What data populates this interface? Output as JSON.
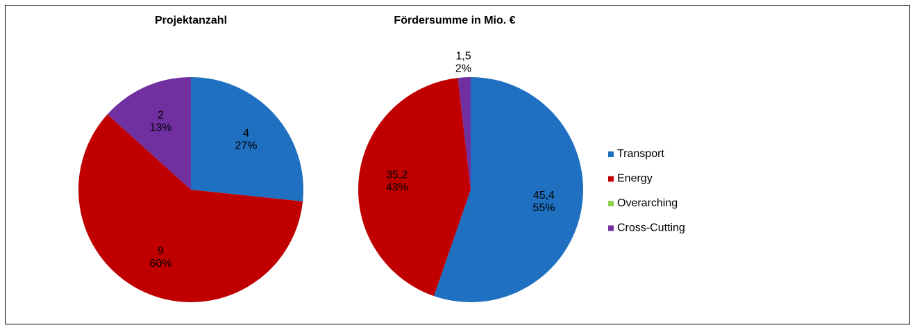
{
  "chart_data": [
    {
      "type": "pie",
      "title": "Projektanzahl",
      "categories": [
        "Transport",
        "Energy",
        "Overarching",
        "Cross-Cutting"
      ],
      "colors": [
        "#1f70c1",
        "#c00000",
        "#92d050",
        "#7030a0"
      ],
      "values": [
        4,
        9,
        0,
        2
      ],
      "percents": [
        27,
        60,
        null,
        13
      ],
      "percent_labels": [
        "27%",
        "60%",
        null,
        "13%"
      ]
    },
    {
      "type": "pie",
      "title": "Fördersumme in Mio. €",
      "categories": [
        "Transport",
        "Energy",
        "Overarching",
        "Cross-Cutting"
      ],
      "colors": [
        "#1f70c1",
        "#c00000",
        "#92d050",
        "#7030a0"
      ],
      "values": [
        45.4,
        35.2,
        0,
        1.5
      ],
      "value_labels": [
        "45,4",
        "35,2",
        null,
        "1,5"
      ],
      "percents": [
        55,
        43,
        null,
        2
      ],
      "percent_labels": [
        "55%",
        "43%",
        null,
        "2%"
      ],
      "legend": "right"
    }
  ]
}
